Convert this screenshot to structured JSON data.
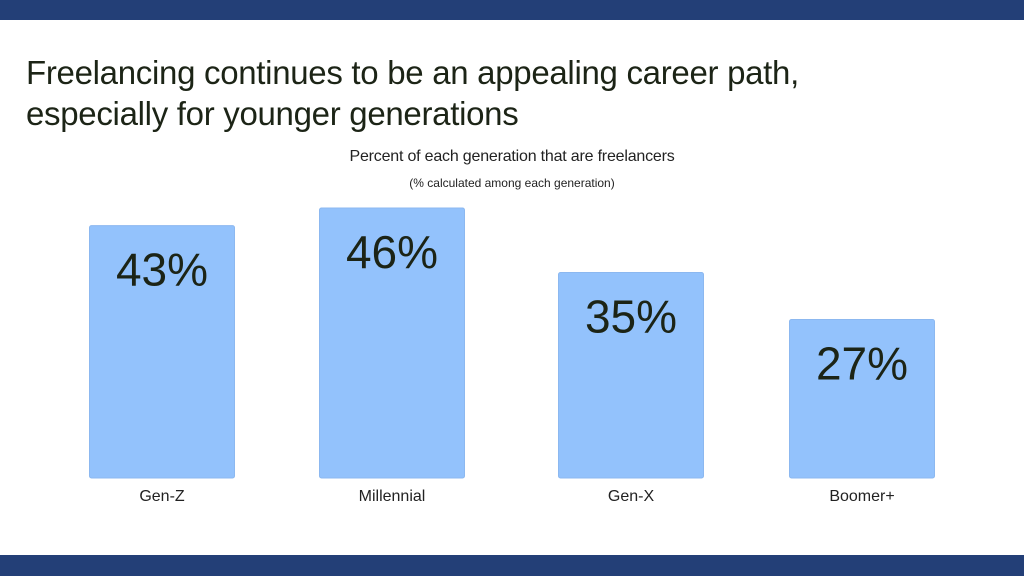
{
  "slide": {
    "title": "Freelancing continues to be an appealing career path,\nespecially for younger generations"
  },
  "chart_data": {
    "type": "bar",
    "title": "Percent of each generation that are freelancers",
    "subtitle": "(% calculated among each generation)",
    "categories": [
      "Gen-Z",
      "Millennial",
      "Gen-X",
      "Boomer+"
    ],
    "values": [
      43,
      46,
      35,
      27
    ],
    "data_labels": [
      "43%",
      "46%",
      "35%",
      "27%"
    ],
    "xlabel": "",
    "ylabel": "",
    "ylim": [
      0,
      50
    ],
    "grid": false,
    "legend": "none",
    "colors": {
      "bar": "#93c2fc",
      "label": "#1c2416",
      "bar_border": "#8cb8f0"
    }
  }
}
